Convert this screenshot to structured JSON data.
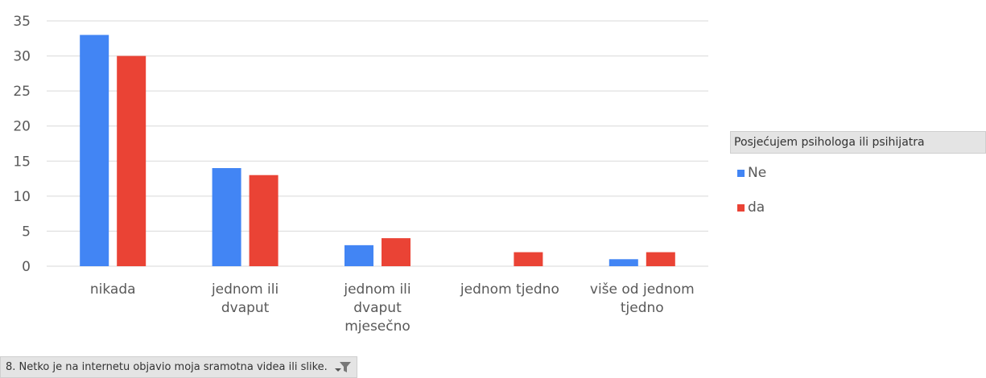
{
  "chart_data": {
    "type": "bar",
    "categories": [
      [
        "nikada"
      ],
      [
        "jednom ili",
        "dvaput"
      ],
      [
        "jednom ili",
        "dvaput",
        "mjesečno"
      ],
      [
        "jednom tjedno"
      ],
      [
        "više od jednom",
        "tjedno"
      ]
    ],
    "series": [
      {
        "name": "Ne",
        "color": "#4285f4",
        "values": [
          33,
          14,
          3,
          0,
          1
        ]
      },
      {
        "name": "da",
        "color": "#ea4335",
        "values": [
          30,
          13,
          4,
          2,
          2
        ]
      }
    ],
    "ylim": [
      0,
      35
    ],
    "yticks": [
      0,
      5,
      10,
      15,
      20,
      25,
      30,
      35
    ],
    "grid": true,
    "legend_title": "Posjećujem psihologa ili psihijatra",
    "legend_position": "right"
  },
  "filter": {
    "label": "8. Netko  je na internetu  objavio moja sramotna videa ili slike.",
    "icon": "filter-icon"
  }
}
